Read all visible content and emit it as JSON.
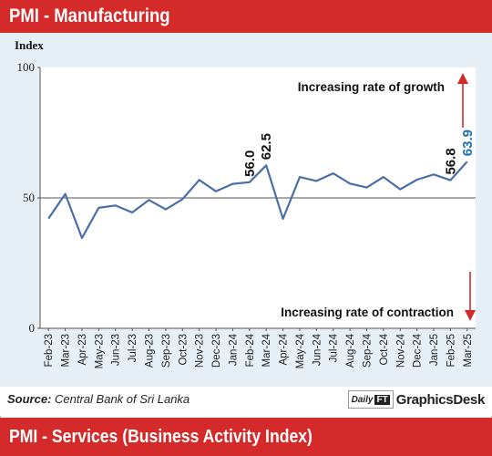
{
  "header": {
    "title": "PMI - Manufacturing"
  },
  "footer": {
    "source_label": "Source:",
    "source_text": "Central Bank of Sri Lanka",
    "logo_daily": "Daily",
    "logo_ft": "FT",
    "logo_text": "GraphicsDesk"
  },
  "next_section": {
    "title": "PMI - Services (Business Activity Index)"
  },
  "colors": {
    "accent": "#d42a2a",
    "line": "#4a6fa5",
    "highlight": "#1f6fb3",
    "panel": "#e6eef6"
  },
  "chart_data": {
    "type": "line",
    "ylabel": "Index",
    "ylim": [
      0,
      100
    ],
    "yticks": [
      0,
      50,
      100
    ],
    "reference_line": 50,
    "categories": [
      "Feb-23",
      "Mar-23",
      "Apr-23",
      "May-23",
      "Jun-23",
      "Jul-23",
      "Aug-23",
      "Sep-23",
      "Oct-23",
      "Nov-23",
      "Dec-23",
      "Jan-24",
      "Feb-24",
      "Mar-24",
      "Apr-24",
      "May-24",
      "Jun-24",
      "Jul-24",
      "Aug-24",
      "Sep-24",
      "Oct-24",
      "Nov-24",
      "Dec-24",
      "Jan-25",
      "Feb-25",
      "Mar-25"
    ],
    "series": [
      {
        "values": [
          42.1,
          51.5,
          34.6,
          46.2,
          47.1,
          44.4,
          49.2,
          45.6,
          49.5,
          56.9,
          52.5,
          55.4,
          56.0,
          62.5,
          42.0,
          58.0,
          56.5,
          59.4,
          55.5,
          54.0,
          58.0,
          53.3,
          57.0,
          59.0,
          56.8,
          63.9
        ]
      }
    ],
    "data_labels": [
      {
        "category": "Feb-24",
        "text": "56.0",
        "color": "#111111"
      },
      {
        "category": "Mar-24",
        "text": "62.5",
        "color": "#111111"
      },
      {
        "category": "Feb-25",
        "text": "56.8",
        "color": "#111111"
      },
      {
        "category": "Mar-25",
        "text": "63.9",
        "color": "#1f6fb3"
      }
    ],
    "annotations": [
      {
        "text": "Increasing rate of growth",
        "arrow": "up"
      },
      {
        "text": "Increasing rate of contraction",
        "arrow": "down"
      }
    ],
    "grid": false
  }
}
